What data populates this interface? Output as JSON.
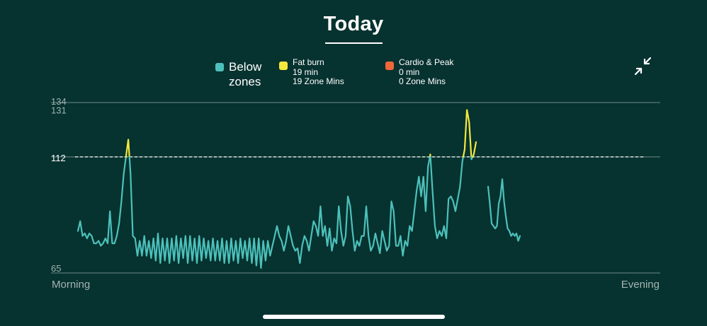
{
  "header": {
    "title": "Today"
  },
  "legend": {
    "below": {
      "label_line1": "Below",
      "label_line2": "zones",
      "color": "#4cc1bb"
    },
    "fat_burn": {
      "name": "Fat burn",
      "minutes": "19 min",
      "zone_mins": "19 Zone Mins",
      "color": "#f4e83e"
    },
    "cardio_peak": {
      "name": "Cardio & Peak",
      "minutes": "0 min",
      "zone_mins": "0 Zone Mins",
      "color": "#f2673a"
    }
  },
  "controls": {
    "collapse_icon": "collapse-arrows-icon"
  },
  "chart_data": {
    "type": "line",
    "title": "Today",
    "ylim": [
      65,
      134
    ],
    "y_ticks": [
      "65",
      "131",
      "134"
    ],
    "reference_line": {
      "value": 112,
      "label": "112",
      "style": "dashed"
    },
    "x_start_label": "Morning",
    "x_end_label": "Evening",
    "grid": "horizontal lines at 65, 112, 134",
    "zone_threshold": 112,
    "series": [
      {
        "segments": [
          [
            82,
            86,
            80,
            81,
            79,
            81,
            80,
            77,
            77,
            78,
            76,
            77,
            79,
            77,
            90,
            77,
            77,
            80,
            85,
            94,
            105,
            112,
            119,
            105,
            80,
            79,
            72,
            78,
            72,
            80,
            72,
            78,
            71,
            79,
            70,
            81,
            69,
            79,
            70,
            79,
            69,
            79,
            70,
            80,
            69,
            79,
            71,
            80,
            69,
            80,
            70,
            79,
            69,
            80,
            70,
            79,
            71,
            78,
            70,
            79,
            70,
            78,
            70,
            79,
            69,
            78,
            69,
            79,
            70,
            78,
            69,
            79,
            71,
            78,
            70,
            79,
            69,
            79,
            68,
            79,
            67,
            78,
            70,
            78,
            72,
            76,
            80,
            84,
            80,
            78,
            74,
            78,
            84,
            80,
            76,
            74,
            75,
            69,
            76,
            80,
            78,
            74,
            80,
            86,
            84,
            80,
            92,
            80,
            84,
            76,
            83,
            74,
            79,
            77,
            92,
            82,
            76,
            80,
            96,
            92,
            82,
            74,
            78,
            76,
            80,
            80,
            92,
            80,
            74,
            76,
            81,
            77,
            73,
            82,
            78,
            74,
            76,
            94,
            90,
            76,
            76,
            80,
            72,
            78,
            76,
            84,
            82,
            90,
            98,
            104,
            96,
            104,
            90,
            108,
            113,
            98,
            84,
            79,
            82,
            80,
            84,
            79,
            95,
            96,
            94,
            90,
            95,
            100,
            110,
            115,
            131,
            126,
            111,
            113,
            118
          ]
        ]
      },
      {
        "segments": [
          [
            100,
            93,
            85,
            84,
            83,
            84,
            93,
            96,
            103,
            94,
            88,
            83,
            82,
            80,
            81,
            80,
            81,
            78,
            80
          ]
        ]
      }
    ]
  },
  "footer": {
    "home_indicator": "home-indicator"
  }
}
